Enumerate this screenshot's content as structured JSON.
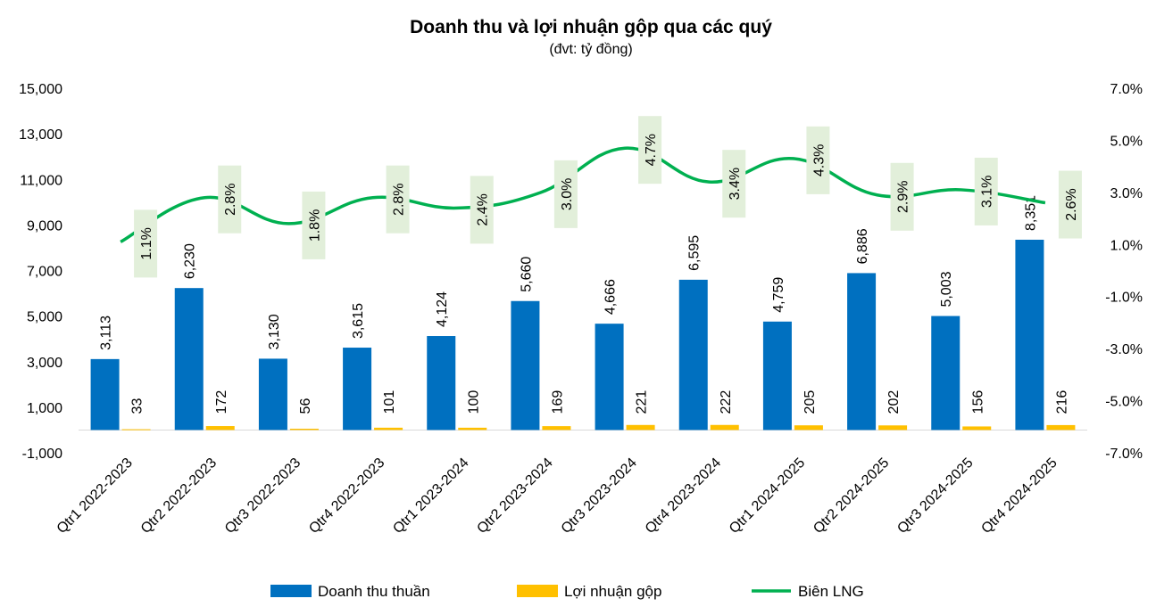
{
  "chart_data": {
    "type": "bar",
    "title": "Doanh thu và lợi nhuận gộp qua các quý",
    "subtitle": "(đvt: tỷ đồng)",
    "categories": [
      "Qtr1 2022-2023",
      "Qtr2 2022-2023",
      "Qtr3 2022-2023",
      "Qtr4 2022-2023",
      "Qtr1 2023-2024",
      "Qtr2 2023-2024",
      "Qtr3 2023-2024",
      "Qtr4 2023-2024",
      "Qtr1 2024-2025",
      "Qtr2 2024-2025",
      "Qtr3 2024-2025",
      "Qtr4 2024-2025"
    ],
    "series": [
      {
        "name": "Doanh thu thuần",
        "type": "bar",
        "axis": "left",
        "color": "#0070C0",
        "values": [
          3113,
          6230,
          3130,
          3615,
          4124,
          5660,
          4666,
          6595,
          4759,
          6886,
          5003,
          8351
        ],
        "labels": [
          "3,113",
          "6,230",
          "3,130",
          "3,615",
          "4,124",
          "5,660",
          "4,666",
          "6,595",
          "4,759",
          "6,886",
          "5,003",
          "8,351"
        ]
      },
      {
        "name": "Lợi nhuận gộp",
        "type": "bar",
        "axis": "left",
        "color": "#FFC000",
        "values": [
          33,
          172,
          56,
          101,
          100,
          169,
          221,
          222,
          205,
          202,
          156,
          216
        ],
        "labels": [
          "33",
          "172",
          "56",
          "101",
          "100",
          "169",
          "221",
          "222",
          "205",
          "202",
          "156",
          "216"
        ]
      },
      {
        "name": "Biên LNG",
        "type": "line",
        "axis": "right",
        "color": "#00B050",
        "values": [
          1.1,
          2.8,
          1.8,
          2.8,
          2.4,
          3.0,
          4.7,
          3.4,
          4.3,
          2.9,
          3.1,
          2.6
        ],
        "labels": [
          "1.1%",
          "2.8%",
          "1.8%",
          "2.8%",
          "2.4%",
          "3.0%",
          "4.7%",
          "3.4%",
          "4.3%",
          "2.9%",
          "3.1%",
          "2.6%"
        ]
      }
    ],
    "y_left": {
      "ylim": [
        -1000,
        15000
      ],
      "ticks": [
        -1000,
        1000,
        3000,
        5000,
        7000,
        9000,
        11000,
        13000,
        15000
      ],
      "tick_labels": [
        "-1,000",
        "1,000",
        "3,000",
        "5,000",
        "7,000",
        "9,000",
        "11,000",
        "13,000",
        "15,000"
      ]
    },
    "y_right": {
      "ylim": [
        -7.0,
        7.0
      ],
      "ticks": [
        -7,
        -5,
        -3,
        -1,
        1,
        3,
        5,
        7
      ],
      "tick_labels": [
        "-7.0%",
        "-5.0%",
        "-3.0%",
        "-1.0%",
        "1.0%",
        "3.0%",
        "5.0%",
        "7.0%"
      ]
    },
    "label_bg": "#E2EFDA",
    "grid": false,
    "legend_position": "bottom"
  }
}
